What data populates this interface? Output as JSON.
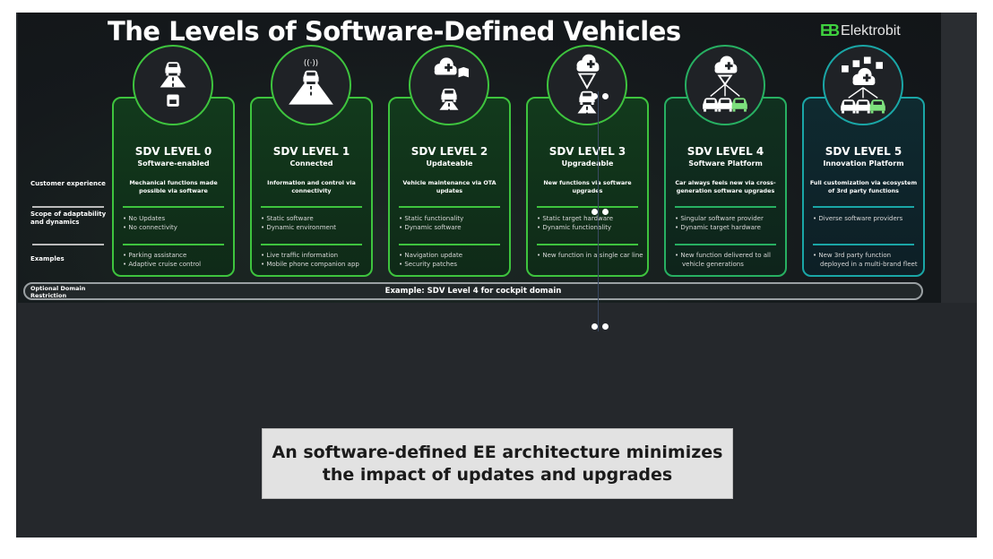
{
  "slide": {
    "title": "The Levels of Software-Defined Vehicles",
    "logo": {
      "mark": "EB",
      "name": "Elektrobit"
    },
    "row_labels": [
      "Customer experience",
      "Scope of adaptability and dynamics",
      "Examples"
    ],
    "domain_label": "Optional Domain Restriction",
    "domain_example": "Example: SDV Level 4 for cockpit domain",
    "levels": [
      {
        "level": "SDV LEVEL 0",
        "name": "Software-enabled",
        "experience": "Mechanical functions made possible via software",
        "scope": [
          "No Updates",
          "No connectivity"
        ],
        "examples": [
          "Parking assistance",
          "Adaptive cruise control"
        ],
        "icon": "car-road-floppy-icon",
        "accent": "green"
      },
      {
        "level": "SDV LEVEL 1",
        "name": "Connected",
        "experience": "Information and control via connectivity",
        "scope": [
          "Static software",
          "Dynamic environment"
        ],
        "examples": [
          "Live traffic information",
          "Mobile phone companion app"
        ],
        "icon": "connected-car-road-icon",
        "accent": "green"
      },
      {
        "level": "SDV LEVEL 2",
        "name": "Updateable",
        "experience": "Vehicle maintenance via OTA updates",
        "scope": [
          "Static functionality",
          "Dynamic software"
        ],
        "examples": [
          "Navigation update",
          "Security patches"
        ],
        "icon": "cloud-shield-map-car-icon",
        "accent": "green"
      },
      {
        "level": "SDV LEVEL 3",
        "name": "Upgradeable",
        "experience": "New functions via software upgrades",
        "scope": [
          "Static target hardware",
          "Dynamic functionality"
        ],
        "examples": [
          "New function in a single car line"
        ],
        "icon": "cloud-upgrade-car-icon",
        "accent": "green"
      },
      {
        "level": "SDV LEVEL 4",
        "name": "Software Platform",
        "experience": "Car always feels new via cross-generation software upgrades",
        "scope": [
          "Singular software provider",
          "Dynamic target hardware"
        ],
        "examples": [
          "New function delivered to all vehicle generations"
        ],
        "icon": "cloud-fleet-icon",
        "accent": "mid"
      },
      {
        "level": "SDV LEVEL 5",
        "name": "Innovation Platform",
        "experience": "Full customization via ecosystem of 3rd party functions",
        "scope": [
          "Diverse software providers"
        ],
        "examples": [
          "New 3rd party function deployed in a multi-brand fleet"
        ],
        "icon": "app-ecosystem-fleet-icon",
        "accent": "teal"
      }
    ]
  },
  "caption": "An software-defined EE architecture minimizes the impact of updates and upgrades",
  "colors": {
    "green": "#3ec43e",
    "mid": "#27b062",
    "teal": "#1aa6a6",
    "background": "#25282c",
    "caption_bg": "#e2e2e2"
  }
}
